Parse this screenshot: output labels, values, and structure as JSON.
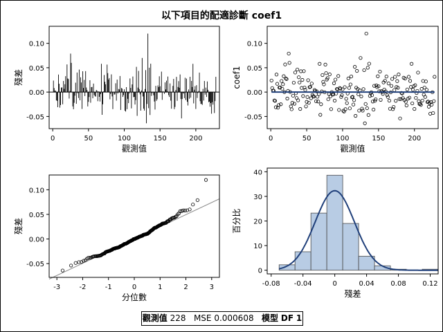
{
  "figure": {
    "title": "以下項目的配適診斷 coef1"
  },
  "stats": {
    "obs_label": "觀測值",
    "obs_value": "228",
    "mse_label": "MSE",
    "mse_value": "0.000608",
    "model_label": "模型",
    "df_label": "DF",
    "df_value": "1"
  },
  "colors": {
    "fit_line": "#1f3f7a",
    "hist_fill": "#b8cce4",
    "ref_line": "#8c8c8c",
    "frame": "#000000"
  },
  "chart_data": [
    {
      "type": "bar",
      "subtype": "needle",
      "title": "",
      "xlabel": "觀測值",
      "ylabel": "殘差",
      "xlim": [
        -5,
        233
      ],
      "ylim": [
        -0.075,
        0.135
      ],
      "xticks": [
        0,
        50,
        100,
        150,
        200
      ],
      "yticks": [
        -0.05,
        0,
        0.05,
        0.1
      ],
      "ytick_labels": [
        "-0.05",
        "0.00",
        "0.05",
        "0.10"
      ],
      "reference_line_y": 0,
      "n": 228,
      "generated": true,
      "seed": 20240601,
      "spikes": [
        {
          "x": 6,
          "y": -0.018
        },
        {
          "x": 9,
          "y": 0.017
        },
        {
          "x": 14,
          "y": -0.025
        },
        {
          "x": 21,
          "y": 0.028
        },
        {
          "x": 25,
          "y": 0.079
        },
        {
          "x": 26,
          "y": 0.06
        },
        {
          "x": 33,
          "y": -0.024
        },
        {
          "x": 44,
          "y": 0.025
        },
        {
          "x": 46,
          "y": 0.043
        },
        {
          "x": 50,
          "y": -0.02
        },
        {
          "x": 68,
          "y": 0.058
        },
        {
          "x": 70,
          "y": -0.025
        },
        {
          "x": 72,
          "y": 0.035
        },
        {
          "x": 84,
          "y": -0.035
        },
        {
          "x": 94,
          "y": 0.033
        },
        {
          "x": 102,
          "y": -0.04
        },
        {
          "x": 108,
          "y": 0.028
        },
        {
          "x": 112,
          "y": 0.032
        },
        {
          "x": 125,
          "y": 0.07
        },
        {
          "x": 128,
          "y": -0.038
        },
        {
          "x": 130,
          "y": 0.045
        },
        {
          "x": 131,
          "y": -0.064
        },
        {
          "x": 133,
          "y": 0.12
        },
        {
          "x": 135,
          "y": 0.05
        },
        {
          "x": 136,
          "y": -0.047
        },
        {
          "x": 152,
          "y": 0.042
        },
        {
          "x": 170,
          "y": -0.035
        },
        {
          "x": 196,
          "y": 0.058
        },
        {
          "x": 205,
          "y": 0.04
        },
        {
          "x": 220,
          "y": -0.03
        },
        {
          "x": 226,
          "y": -0.043
        }
      ]
    },
    {
      "type": "scatter",
      "title": "",
      "xlabel": "觀測值",
      "ylabel": "coef1",
      "xlim": [
        -5,
        233
      ],
      "ylim": [
        -0.075,
        0.135
      ],
      "xticks": [
        0,
        50,
        100,
        150,
        200
      ],
      "yticks": [
        -0.05,
        0,
        0.05,
        0.1
      ],
      "ytick_labels": [
        "-0.05",
        "0.00",
        "0.05",
        "0.10"
      ],
      "fit_line": {
        "x": [
          1,
          228
        ],
        "y": [
          0,
          0
        ]
      },
      "generated": true,
      "seed": 20240601
    },
    {
      "type": "scatter",
      "subtype": "qq",
      "title": "",
      "xlabel": "分位數",
      "ylabel": "殘差",
      "xlim": [
        -3.3,
        3.3
      ],
      "ylim": [
        -0.078,
        0.13
      ],
      "xticks": [
        -3,
        -2,
        -1,
        0,
        1,
        2,
        3
      ],
      "yticks": [
        -0.05,
        0,
        0.05,
        0.1
      ],
      "ytick_labels": [
        "-0.05",
        "0.00",
        "0.05",
        "0.10"
      ],
      "reference_line": {
        "intercept": 0,
        "slope": 0.0247
      },
      "generated": true,
      "seed": 20240601
    },
    {
      "type": "bar",
      "subtype": "histogram",
      "title": "",
      "xlabel": "殘差",
      "ylabel": "百分比",
      "xlim": [
        -0.085,
        0.13
      ],
      "ylim": [
        -1.5,
        41.5
      ],
      "xticks": [
        -0.08,
        -0.04,
        0,
        0.04,
        0.08,
        0.12
      ],
      "xtick_labels": [
        "-0.08",
        "-0.04",
        "0",
        "0.04",
        "0.08",
        "0.12"
      ],
      "yticks": [
        0,
        10,
        20,
        30,
        40
      ],
      "bins": [
        {
          "x0": -0.07,
          "x1": -0.05,
          "value": 2.2
        },
        {
          "x0": -0.05,
          "x1": -0.03,
          "value": 7.5
        },
        {
          "x0": -0.03,
          "x1": -0.01,
          "value": 23.2
        },
        {
          "x0": -0.01,
          "x1": 0.01,
          "value": 38.6
        },
        {
          "x0": 0.01,
          "x1": 0.03,
          "value": 19.0
        },
        {
          "x0": 0.03,
          "x1": 0.05,
          "value": 5.7
        },
        {
          "x0": 0.05,
          "x1": 0.07,
          "value": 1.8
        },
        {
          "x0": 0.07,
          "x1": 0.09,
          "value": 0.4
        },
        {
          "x0": 0.09,
          "x1": 0.11,
          "value": 0.0
        },
        {
          "x0": 0.11,
          "x1": 0.13,
          "value": 0.4
        }
      ],
      "density_curve": {
        "mean": 0.0,
        "sd": 0.0247,
        "xrange": [
          -0.07,
          0.13
        ]
      }
    }
  ]
}
